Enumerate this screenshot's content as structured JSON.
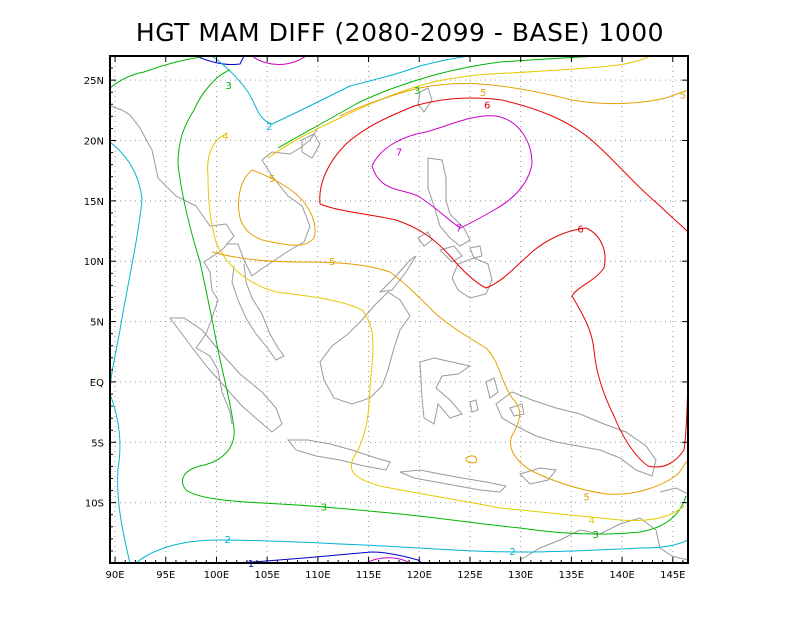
{
  "title": "HGT MAM DIFF (2080-2099 - BASE) 1000",
  "axes": {
    "x_ticks": [
      "90E",
      "95E",
      "100E",
      "105E",
      "110E",
      "115E",
      "120E",
      "125E",
      "130E",
      "135E",
      "140E",
      "145E"
    ],
    "y_ticks": [
      "25N",
      "20N",
      "15N",
      "10N",
      "5N",
      "EQ",
      "5S",
      "10S"
    ],
    "lon_range": [
      89.5,
      146.5
    ],
    "lat_range": [
      -15,
      27
    ]
  },
  "colors": {
    "level_1": "#0000c8",
    "level_2": "#00b4d2",
    "level_3": "#00b400",
    "level_4": "#e6c800",
    "level_5": "#e6a000",
    "level_6": "#e60000",
    "level_7": "#c800c8",
    "coast": "#9a9a9a",
    "grid": "#999999"
  },
  "contour_labels": [
    {
      "text": "3",
      "level": 3,
      "lon": 101.2,
      "lat": 24.6
    },
    {
      "text": "3",
      "level": 3,
      "lon": 119.8,
      "lat": 24.2
    },
    {
      "text": "2",
      "level": 2,
      "lon": 105.2,
      "lat": 21.2
    },
    {
      "text": "4",
      "level": 4,
      "lon": 100.9,
      "lat": 20.4
    },
    {
      "text": "5",
      "level": 5,
      "lon": 105.5,
      "lat": 16.9
    },
    {
      "text": "5",
      "level": 5,
      "lon": 126.3,
      "lat": 24.0
    },
    {
      "text": "5",
      "level": 5,
      "lon": 146.0,
      "lat": 23.8
    },
    {
      "text": "6",
      "level": 6,
      "lon": 126.7,
      "lat": 23.0
    },
    {
      "text": "7",
      "level": 7,
      "lon": 118.0,
      "lat": 19.1
    },
    {
      "text": "7",
      "level": 7,
      "lon": 123.9,
      "lat": 12.8
    },
    {
      "text": "6",
      "level": 6,
      "lon": 135.9,
      "lat": 12.7
    },
    {
      "text": "5",
      "level": 5,
      "lon": 111.4,
      "lat": 10.0
    },
    {
      "text": "3",
      "level": 3,
      "lon": 110.6,
      "lat": -10.3
    },
    {
      "text": "2",
      "level": 2,
      "lon": 101.1,
      "lat": -13.0
    },
    {
      "text": "2",
      "level": 2,
      "lon": 129.2,
      "lat": -14.0
    },
    {
      "text": "3",
      "level": 3,
      "lon": 137.4,
      "lat": -12.6
    },
    {
      "text": "4",
      "level": 4,
      "lon": 137.0,
      "lat": -11.4
    },
    {
      "text": "5",
      "level": 5,
      "lon": 136.5,
      "lat": -9.5
    },
    {
      "text": "1",
      "level": 1,
      "lon": 103.4,
      "lat": -15.0
    }
  ]
}
